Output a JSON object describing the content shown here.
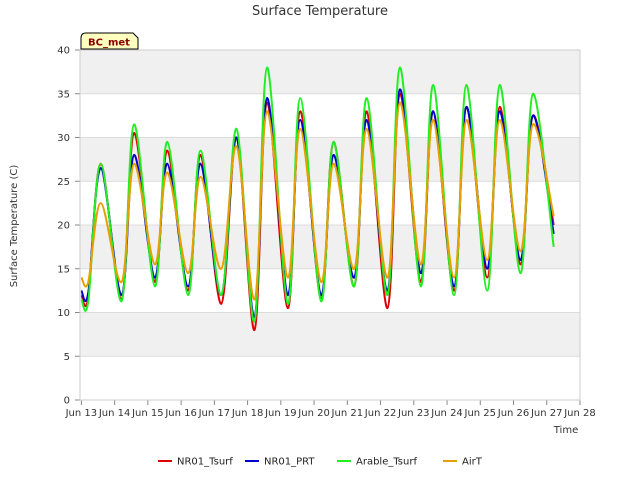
{
  "chart_data": {
    "type": "line",
    "title": "Surface Temperature",
    "site_label": "BC_met",
    "xlabel": "Time",
    "ylabel": "Surface Temperature (C)",
    "ylim": [
      0,
      40
    ],
    "yticks": [
      0,
      5,
      10,
      15,
      20,
      25,
      30,
      35,
      40
    ],
    "xlim": [
      "2023-06-12T23:00",
      "2023-06-28T00:00"
    ],
    "xticks": [
      {
        "date": "2023-06-13",
        "label": "Jun 13"
      },
      {
        "date": "2023-06-14",
        "label": "Jun 14"
      },
      {
        "date": "2023-06-15",
        "label": "Jun 15"
      },
      {
        "date": "2023-06-16",
        "label": "Jun 16"
      },
      {
        "date": "2023-06-17",
        "label": "Jun 17"
      },
      {
        "date": "2023-06-18",
        "label": "Jun 18"
      },
      {
        "date": "2023-06-19",
        "label": "Jun 19"
      },
      {
        "date": "2023-06-20",
        "label": "Jun 20"
      },
      {
        "date": "2023-06-21",
        "label": "Jun 21"
      },
      {
        "date": "2023-06-22",
        "label": "Jun 22"
      },
      {
        "date": "2023-06-23",
        "label": "Jun 23"
      },
      {
        "date": "2023-06-24",
        "label": "Jun 24"
      },
      {
        "date": "2023-06-25",
        "label": "Jun 25"
      },
      {
        "date": "2023-06-26",
        "label": "Jun 26"
      },
      {
        "date": "2023-06-27",
        "label": "Jun 27"
      },
      {
        "date": "2023-06-28",
        "label": "Jun 28"
      }
    ],
    "grid": true,
    "legend_position": "bottom",
    "series": [
      {
        "name": "NR01_Tsurf",
        "color": "#dd0000",
        "x": [
          "2023-06-13T00:00",
          "2023-06-13T05:00",
          "2023-06-13T14:00",
          "2023-06-14T05:00",
          "2023-06-14T14:00",
          "2023-06-15T05:00",
          "2023-06-15T14:00",
          "2023-06-16T05:00",
          "2023-06-16T14:00",
          "2023-06-17T05:00",
          "2023-06-17T16:00",
          "2023-06-18T05:00",
          "2023-06-18T14:00",
          "2023-06-19T05:00",
          "2023-06-19T14:00",
          "2023-06-20T05:00",
          "2023-06-20T14:00",
          "2023-06-21T05:00",
          "2023-06-21T14:00",
          "2023-06-22T05:00",
          "2023-06-22T14:00",
          "2023-06-23T05:00",
          "2023-06-23T14:00",
          "2023-06-24T05:00",
          "2023-06-24T14:00",
          "2023-06-25T05:00",
          "2023-06-25T14:00",
          "2023-06-26T05:00",
          "2023-06-26T14:00",
          "2023-06-27T05:00"
        ],
        "y": [
          12.0,
          11.8,
          27.0,
          11.5,
          30.5,
          13.5,
          28.5,
          12.5,
          28.0,
          11.0,
          30.0,
          8.0,
          34.0,
          10.5,
          33.0,
          11.5,
          29.5,
          13.0,
          33.0,
          10.5,
          35.0,
          13.5,
          33.0,
          12.5,
          33.5,
          14.0,
          33.5,
          15.5,
          32.5,
          20.0
        ]
      },
      {
        "name": "NR01_PRT",
        "color": "#0000cc",
        "x": [
          "2023-06-13T00:00",
          "2023-06-13T05:00",
          "2023-06-13T14:00",
          "2023-06-14T05:00",
          "2023-06-14T14:00",
          "2023-06-15T05:00",
          "2023-06-15T14:00",
          "2023-06-16T05:00",
          "2023-06-16T14:00",
          "2023-06-17T05:00",
          "2023-06-17T16:00",
          "2023-06-18T05:00",
          "2023-06-18T14:00",
          "2023-06-19T05:00",
          "2023-06-19T14:00",
          "2023-06-20T05:00",
          "2023-06-20T14:00",
          "2023-06-21T05:00",
          "2023-06-21T14:00",
          "2023-06-22T05:00",
          "2023-06-22T14:00",
          "2023-06-23T05:00",
          "2023-06-23T14:00",
          "2023-06-24T05:00",
          "2023-06-24T14:00",
          "2023-06-25T05:00",
          "2023-06-25T14:00",
          "2023-06-26T05:00",
          "2023-06-26T14:00",
          "2023-06-27T05:00"
        ],
        "y": [
          12.5,
          12.3,
          26.5,
          12.0,
          28.0,
          14.0,
          27.0,
          13.0,
          27.0,
          12.0,
          30.0,
          9.5,
          34.5,
          12.0,
          32.0,
          12.0,
          28.0,
          14.0,
          32.0,
          12.5,
          35.5,
          14.5,
          33.0,
          13.0,
          33.5,
          15.0,
          33.0,
          16.0,
          32.5,
          19.0
        ]
      },
      {
        "name": "Arable_Tsurf",
        "color": "#22ee22",
        "x": [
          "2023-06-13T00:00",
          "2023-06-13T05:00",
          "2023-06-13T14:00",
          "2023-06-14T05:00",
          "2023-06-14T14:00",
          "2023-06-15T05:00",
          "2023-06-15T14:00",
          "2023-06-16T05:00",
          "2023-06-16T14:00",
          "2023-06-17T05:00",
          "2023-06-17T16:00",
          "2023-06-18T05:00",
          "2023-06-18T14:00",
          "2023-06-19T05:00",
          "2023-06-19T14:00",
          "2023-06-20T05:00",
          "2023-06-20T14:00",
          "2023-06-21T05:00",
          "2023-06-21T14:00",
          "2023-06-22T05:00",
          "2023-06-22T14:00",
          "2023-06-23T05:00",
          "2023-06-23T14:00",
          "2023-06-24T05:00",
          "2023-06-24T14:00",
          "2023-06-25T05:00",
          "2023-06-25T14:00",
          "2023-06-26T05:00",
          "2023-06-26T14:00",
          "2023-06-27T05:00"
        ],
        "y": [
          11.5,
          11.3,
          27.0,
          11.3,
          31.5,
          13.0,
          29.5,
          12.0,
          28.5,
          12.0,
          31.0,
          9.0,
          38.0,
          11.0,
          34.5,
          11.3,
          29.5,
          13.0,
          34.5,
          12.0,
          38.0,
          13.0,
          36.0,
          12.0,
          36.0,
          12.5,
          36.0,
          14.5,
          35.0,
          17.5
        ]
      },
      {
        "name": "AirT",
        "color": "#e8a000",
        "x": [
          "2023-06-13T00:00",
          "2023-06-13T05:00",
          "2023-06-13T14:00",
          "2023-06-14T05:00",
          "2023-06-14T14:00",
          "2023-06-15T05:00",
          "2023-06-15T14:00",
          "2023-06-16T05:00",
          "2023-06-16T14:00",
          "2023-06-17T05:00",
          "2023-06-17T16:00",
          "2023-06-18T05:00",
          "2023-06-18T14:00",
          "2023-06-19T05:00",
          "2023-06-19T14:00",
          "2023-06-20T05:00",
          "2023-06-20T14:00",
          "2023-06-21T05:00",
          "2023-06-21T14:00",
          "2023-06-22T05:00",
          "2023-06-22T14:00",
          "2023-06-23T05:00",
          "2023-06-23T14:00",
          "2023-06-24T05:00",
          "2023-06-24T14:00",
          "2023-06-25T05:00",
          "2023-06-25T14:00",
          "2023-06-26T05:00",
          "2023-06-26T14:00",
          "2023-06-27T05:00"
        ],
        "y": [
          14.0,
          13.5,
          22.5,
          13.5,
          27.0,
          15.5,
          26.0,
          14.5,
          25.5,
          15.0,
          29.0,
          11.5,
          33.0,
          14.0,
          31.0,
          13.5,
          27.0,
          15.0,
          31.0,
          14.0,
          34.0,
          15.5,
          32.0,
          14.0,
          32.0,
          16.0,
          32.0,
          17.0,
          31.5,
          21.0
        ]
      }
    ]
  }
}
